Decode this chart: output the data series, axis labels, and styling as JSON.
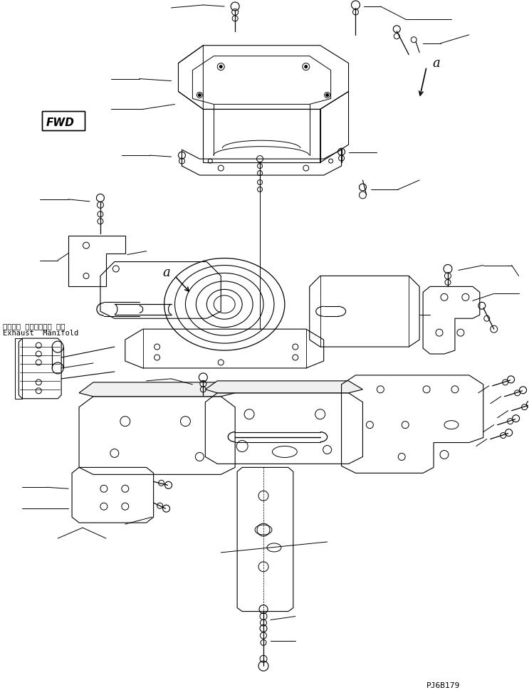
{
  "bg_color": "#ffffff",
  "line_color": "#000000",
  "fig_width": 7.43,
  "fig_height": 9.7,
  "dpi": 100,
  "title_bottom_right": "PJ6B179",
  "label_fwd": "FWD",
  "label_a1": "a",
  "label_a2": "a",
  "label_exhaust_jp": "エキゾー ストマニホー ルド",
  "label_exhaust_en": "Exhaust  Manifold"
}
